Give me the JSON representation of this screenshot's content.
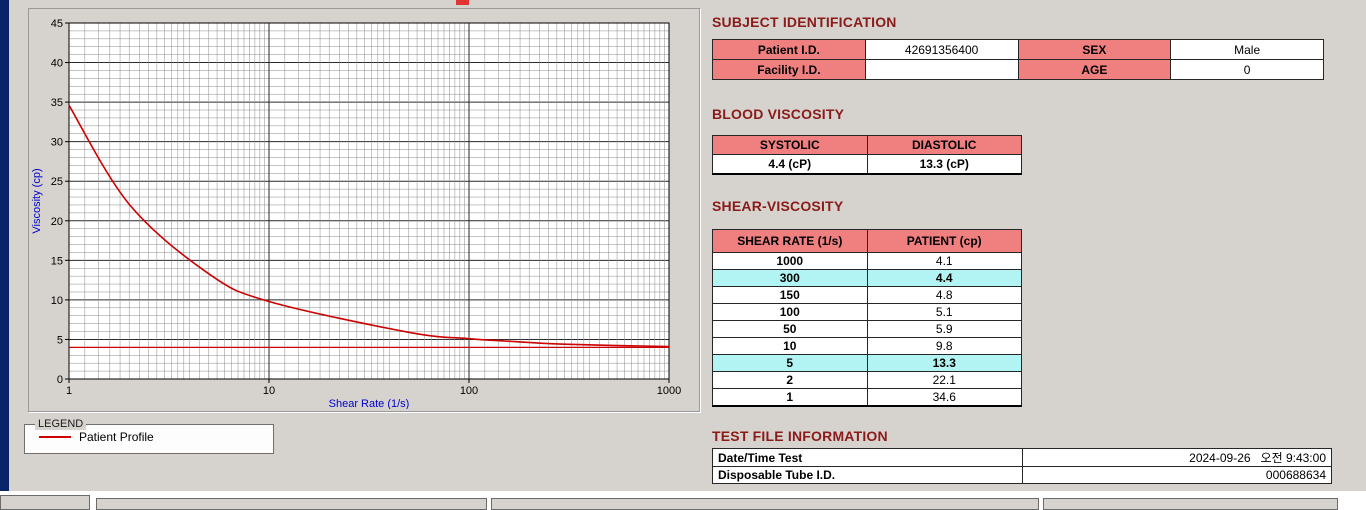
{
  "colors": {
    "window_background": "#d6d3ce",
    "section_heading": "#8b1a1a",
    "table_header_background": "#f08080",
    "row_highlight_background": "#b2f4f4",
    "curve_red": "#cc0000",
    "axis_title_blue": "#0000cc"
  },
  "chart_data": {
    "type": "line",
    "title": "",
    "xlabel": "Shear Rate (1/s)",
    "ylabel": "Viscosity (cp)",
    "x_scale": "log",
    "xlim": [
      1,
      1000
    ],
    "ylim": [
      0,
      45
    ],
    "x_ticks": [
      1,
      10,
      100,
      1000
    ],
    "y_ticks": [
      0,
      5,
      10,
      15,
      20,
      25,
      30,
      35,
      40,
      45
    ],
    "grid": true,
    "legend_position": "below-left",
    "series": [
      {
        "name": "Patient Profile",
        "color": "#cc0000",
        "x": [
          1,
          2,
          5,
          10,
          50,
          100,
          150,
          300,
          1000
        ],
        "y": [
          34.6,
          22.1,
          13.3,
          9.8,
          5.9,
          5.1,
          4.8,
          4.4,
          4.1
        ]
      }
    ],
    "baseline": {
      "y": 4.0,
      "color": "#cc0000"
    }
  },
  "legend": {
    "box_label": "LEGEND",
    "items": [
      {
        "label": "Patient Profile",
        "color": "#cc0000"
      }
    ]
  },
  "subject_identification": {
    "heading": "SUBJECT IDENTIFICATION",
    "rows": [
      {
        "cells": [
          {
            "text": "Patient I.D.",
            "type": "label"
          },
          {
            "text": "42691356400",
            "type": "value"
          },
          {
            "text": "SEX",
            "type": "label"
          },
          {
            "text": "Male",
            "type": "value"
          }
        ]
      },
      {
        "cells": [
          {
            "text": "Facility I.D.",
            "type": "label"
          },
          {
            "text": "",
            "type": "value"
          },
          {
            "text": "AGE",
            "type": "label"
          },
          {
            "text": "0",
            "type": "value"
          }
        ]
      }
    ]
  },
  "blood_viscosity": {
    "heading": "BLOOD VISCOSITY",
    "columns": [
      "SYSTOLIC",
      "DIASTOLIC"
    ],
    "values": [
      "4.4 (cP)",
      "13.3 (cP)"
    ]
  },
  "shear_viscosity": {
    "heading": "SHEAR-VISCOSITY",
    "columns": [
      "SHEAR RATE (1/s)",
      "PATIENT (cp)"
    ],
    "rows": [
      {
        "shear_rate": "1000",
        "patient": "4.1",
        "highlight": false
      },
      {
        "shear_rate": "300",
        "patient": "4.4",
        "highlight": true
      },
      {
        "shear_rate": "150",
        "patient": "4.8",
        "highlight": false
      },
      {
        "shear_rate": "100",
        "patient": "5.1",
        "highlight": false
      },
      {
        "shear_rate": "50",
        "patient": "5.9",
        "highlight": false
      },
      {
        "shear_rate": "10",
        "patient": "9.8",
        "highlight": false
      },
      {
        "shear_rate": "5",
        "patient": "13.3",
        "highlight": true
      },
      {
        "shear_rate": "2",
        "patient": "22.1",
        "highlight": false
      },
      {
        "shear_rate": "1",
        "patient": "34.6",
        "highlight": false
      }
    ]
  },
  "test_file_information": {
    "heading": "TEST FILE INFORMATION",
    "rows": [
      {
        "label": "Date/Time Test",
        "value": "2024-09-26   오전 9:43:00"
      },
      {
        "label": "Disposable Tube I.D.",
        "value": "000688634"
      }
    ]
  }
}
